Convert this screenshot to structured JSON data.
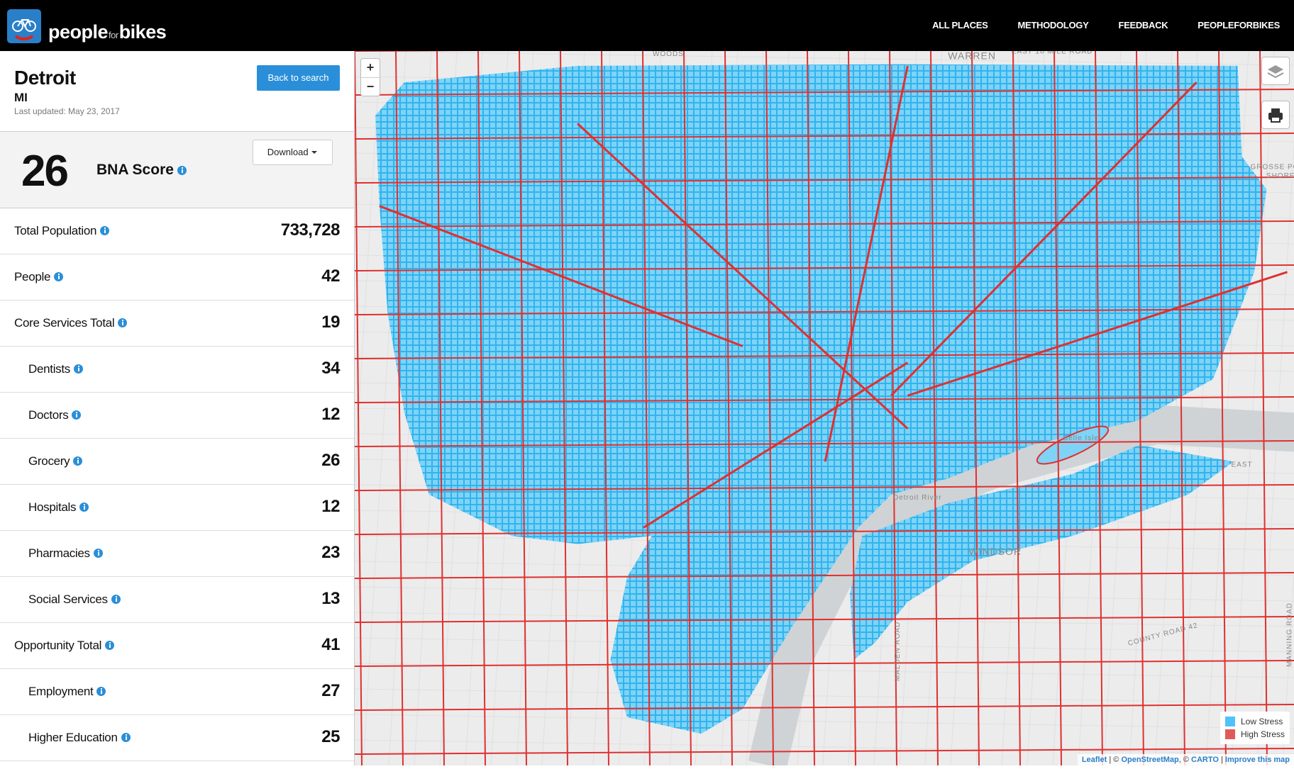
{
  "nav": {
    "brand_people": "people",
    "brand_for": "for",
    "brand_bikes": "bikes",
    "links": [
      "ALL PLACES",
      "METHODOLOGY",
      "FEEDBACK",
      "PEOPLEFORBIKES"
    ]
  },
  "place": {
    "city": "Detroit",
    "state": "MI",
    "last_updated": "Last updated: May 23, 2017",
    "back_button": "Back to search"
  },
  "score": {
    "value": "26",
    "label": "BNA Score",
    "download": "Download"
  },
  "metrics": [
    {
      "label": "Total Population",
      "value": "733,728"
    },
    {
      "label": "People",
      "value": "42"
    },
    {
      "label": "Core Services Total",
      "value": "19",
      "items": [
        {
          "label": "Dentists",
          "value": "34"
        },
        {
          "label": "Doctors",
          "value": "12"
        },
        {
          "label": "Grocery",
          "value": "26"
        },
        {
          "label": "Hospitals",
          "value": "12"
        },
        {
          "label": "Pharmacies",
          "value": "23"
        },
        {
          "label": "Social Services",
          "value": "13"
        }
      ]
    },
    {
      "label": "Opportunity Total",
      "value": "41",
      "items": [
        {
          "label": "Employment",
          "value": "27"
        },
        {
          "label": "Higher Education",
          "value": "25"
        }
      ]
    }
  ],
  "map": {
    "zoom_in": "+",
    "zoom_out": "−",
    "labels": [
      "WOODS",
      "WARREN",
      "EAST 10 MILE ROAD",
      "GROSSE PO",
      "SHORE",
      "Belle Isle",
      "Detroit River",
      "WINDSOR",
      "COUNTY ROAD 42",
      "MALDEN ROAD",
      "MANNING ROAD",
      "EAST"
    ],
    "legend": [
      "Low Stress",
      "High Stress"
    ],
    "attribution": {
      "leaflet": "Leaflet",
      "sep1": " | © ",
      "osm": "OpenStreetMap",
      "sep2": ", © ",
      "carto": "CARTO",
      "sep3": " | ",
      "improve": "Improve this map"
    }
  }
}
